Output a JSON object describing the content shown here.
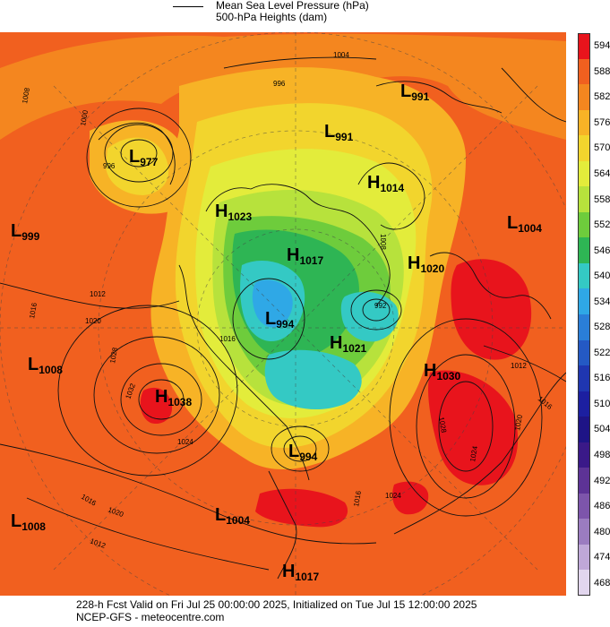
{
  "legend": {
    "line1": "Mean Sea Level Pressure (hPa)",
    "line2": "500-hPa Heights (dam)"
  },
  "colorbar": {
    "entries": [
      {
        "label": "594",
        "color": "#e8141c"
      },
      {
        "label": "588",
        "color": "#f1601f"
      },
      {
        "label": "582",
        "color": "#f4861f"
      },
      {
        "label": "576",
        "color": "#f7b326"
      },
      {
        "label": "570",
        "color": "#f2d52d"
      },
      {
        "label": "564",
        "color": "#e3ec3b"
      },
      {
        "label": "558",
        "color": "#b7e23c"
      },
      {
        "label": "552",
        "color": "#6ecc3c"
      },
      {
        "label": "546",
        "color": "#2eb554"
      },
      {
        "label": "540",
        "color": "#34c9c4"
      },
      {
        "label": "534",
        "color": "#2fa8e6"
      },
      {
        "label": "528",
        "color": "#2a7ed8"
      },
      {
        "label": "522",
        "color": "#2459c4"
      },
      {
        "label": "516",
        "color": "#1f36b0"
      },
      {
        "label": "510",
        "color": "#1c1fa0"
      },
      {
        "label": "504",
        "color": "#1e1486"
      },
      {
        "label": "498",
        "color": "#3a1988"
      },
      {
        "label": "492",
        "color": "#5d3396"
      },
      {
        "label": "486",
        "color": "#7d55ab"
      },
      {
        "label": "480",
        "color": "#9b7cc0"
      },
      {
        "label": "474",
        "color": "#bfa8d8"
      },
      {
        "label": "468",
        "color": "#e2d6ee"
      }
    ]
  },
  "pressure_centers": [
    {
      "type": "L",
      "value": "977"
    },
    {
      "type": "L",
      "value": "991"
    },
    {
      "type": "L",
      "value": "991"
    },
    {
      "type": "H",
      "value": "1014"
    },
    {
      "type": "H",
      "value": "1023"
    },
    {
      "type": "L",
      "value": "999"
    },
    {
      "type": "H",
      "value": "1017"
    },
    {
      "type": "H",
      "value": "1020"
    },
    {
      "type": "L",
      "value": "1004"
    },
    {
      "type": "L",
      "value": "994"
    },
    {
      "type": "H",
      "value": "1021"
    },
    {
      "type": "L",
      "value": "1008"
    },
    {
      "type": "H",
      "value": "1038"
    },
    {
      "type": "H",
      "value": "1030"
    },
    {
      "type": "L",
      "value": "994"
    },
    {
      "type": "L",
      "value": "1008"
    },
    {
      "type": "L",
      "value": "1004"
    },
    {
      "type": "H",
      "value": "1017"
    }
  ],
  "isobar_labels": [
    "1004",
    "996",
    "1008",
    "1000",
    "996",
    "1012",
    "1016",
    "1020",
    "1028",
    "1032",
    "1024",
    "1016",
    "1020",
    "1012",
    "1016",
    "1024",
    "1028",
    "1012",
    "1016",
    "1020",
    "1024",
    "1008",
    "1016",
    "992"
  ],
  "footer": {
    "line1": "228-h Fcst Valid on Fri Jul 25 00:00:00 2025, Initialized on Tue Jul 15 12:00:00 2025",
    "line2": "NCEP-GFS  - meteocentre.com"
  }
}
